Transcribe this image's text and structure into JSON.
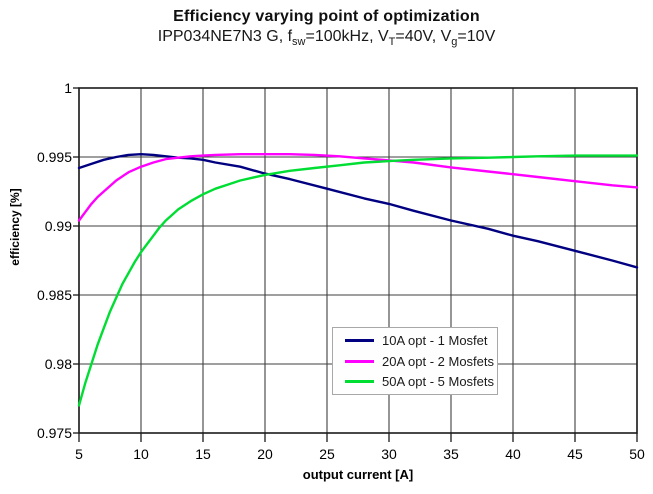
{
  "header": {
    "title": "Efficiency varying point of optimization",
    "subtitle": {
      "p1": "IPP034NE7N3 G, f",
      "s1": "sw",
      "p2": "=100kHz, V",
      "s2": "T",
      "p3": "=40V, V",
      "s3": "g",
      "p4": "=10V"
    }
  },
  "chart_data": {
    "type": "line",
    "title": "Efficiency varying point of optimization",
    "subtitle": "IPP034NE7N3 G, fsw=100kHz, VT=40V, Vg=10V",
    "xlabel": "output current [A]",
    "ylabel": "efficiency [%]",
    "xlim": [
      5,
      50
    ],
    "ylim": [
      0.975,
      1.0
    ],
    "x_ticks": [
      5,
      10,
      15,
      20,
      25,
      30,
      35,
      40,
      45,
      50
    ],
    "y_ticks": [
      1,
      0.995,
      0.99,
      0.985,
      0.98,
      0.975
    ],
    "grid": true,
    "legend_position": "inside bottom-center boxed",
    "colors": {
      "grid": "#3f3f3f",
      "axis": "#1a1a1a",
      "navy": "#000080",
      "magenta": "#ff00ff",
      "green": "#00dd33"
    },
    "series": [
      {
        "name": "10A opt - 1 Mosfet",
        "color": "#000080",
        "points": [
          [
            5,
            0.9942
          ],
          [
            6,
            0.9945
          ],
          [
            7,
            0.9948
          ],
          [
            8,
            0.995
          ],
          [
            9,
            0.99515
          ],
          [
            10,
            0.9952
          ],
          [
            11,
            0.99515
          ],
          [
            12,
            0.99505
          ],
          [
            13,
            0.99495
          ],
          [
            14,
            0.9949
          ],
          [
            15,
            0.9948
          ],
          [
            16,
            0.9946
          ],
          [
            18,
            0.9943
          ],
          [
            20,
            0.9938
          ],
          [
            22,
            0.9934
          ],
          [
            25,
            0.9927
          ],
          [
            28,
            0.992
          ],
          [
            30,
            0.9916
          ],
          [
            32,
            0.9911
          ],
          [
            35,
            0.9904
          ],
          [
            38,
            0.9898
          ],
          [
            40,
            0.9893
          ],
          [
            42,
            0.9889
          ],
          [
            45,
            0.9882
          ],
          [
            48,
            0.9875
          ],
          [
            50,
            0.987
          ]
        ]
      },
      {
        "name": "20A opt - 2 Mosfets",
        "color": "#ff00ff",
        "points": [
          [
            5,
            0.9904
          ],
          [
            5.5,
            0.991
          ],
          [
            6,
            0.9916
          ],
          [
            6.5,
            0.9921
          ],
          [
            7,
            0.9925
          ],
          [
            7.5,
            0.9929
          ],
          [
            8,
            0.9933
          ],
          [
            9,
            0.9939
          ],
          [
            10,
            0.9943
          ],
          [
            11,
            0.9946
          ],
          [
            12,
            0.99485
          ],
          [
            13,
            0.99495
          ],
          [
            14,
            0.99505
          ],
          [
            15,
            0.9951
          ],
          [
            16,
            0.99515
          ],
          [
            18,
            0.9952
          ],
          [
            20,
            0.9952
          ],
          [
            22,
            0.9952
          ],
          [
            24,
            0.99515
          ],
          [
            26,
            0.99505
          ],
          [
            28,
            0.9949
          ],
          [
            30,
            0.99475
          ],
          [
            32,
            0.9946
          ],
          [
            35,
            0.99425
          ],
          [
            38,
            0.99395
          ],
          [
            40,
            0.99375
          ],
          [
            42,
            0.99355
          ],
          [
            45,
            0.99325
          ],
          [
            48,
            0.99295
          ],
          [
            50,
            0.9928
          ]
        ]
      },
      {
        "name": "50A opt - 5 Mosfets",
        "color": "#00dd33",
        "points": [
          [
            5,
            0.977
          ],
          [
            5.5,
            0.9786
          ],
          [
            6,
            0.98
          ],
          [
            6.5,
            0.9814
          ],
          [
            7,
            0.9826
          ],
          [
            7.5,
            0.9838
          ],
          [
            8,
            0.9848
          ],
          [
            8.5,
            0.9858
          ],
          [
            9,
            0.9866
          ],
          [
            9.5,
            0.9874
          ],
          [
            10,
            0.9881
          ],
          [
            10.5,
            0.9887
          ],
          [
            11,
            0.9893
          ],
          [
            11.5,
            0.9899
          ],
          [
            12,
            0.9904
          ],
          [
            12.5,
            0.9908
          ],
          [
            13,
            0.9912
          ],
          [
            14,
            0.9918
          ],
          [
            15,
            0.9923
          ],
          [
            16,
            0.9927
          ],
          [
            17,
            0.993
          ],
          [
            18,
            0.9933
          ],
          [
            19,
            0.9935
          ],
          [
            20,
            0.9937
          ],
          [
            22,
            0.994
          ],
          [
            24,
            0.9942
          ],
          [
            26,
            0.9944
          ],
          [
            28,
            0.9946
          ],
          [
            30,
            0.9947
          ],
          [
            32,
            0.9948
          ],
          [
            35,
            0.9949
          ],
          [
            38,
            0.99495
          ],
          [
            40,
            0.995
          ],
          [
            42,
            0.99505
          ],
          [
            45,
            0.9951
          ],
          [
            48,
            0.9951
          ],
          [
            50,
            0.9951
          ]
        ]
      }
    ]
  }
}
